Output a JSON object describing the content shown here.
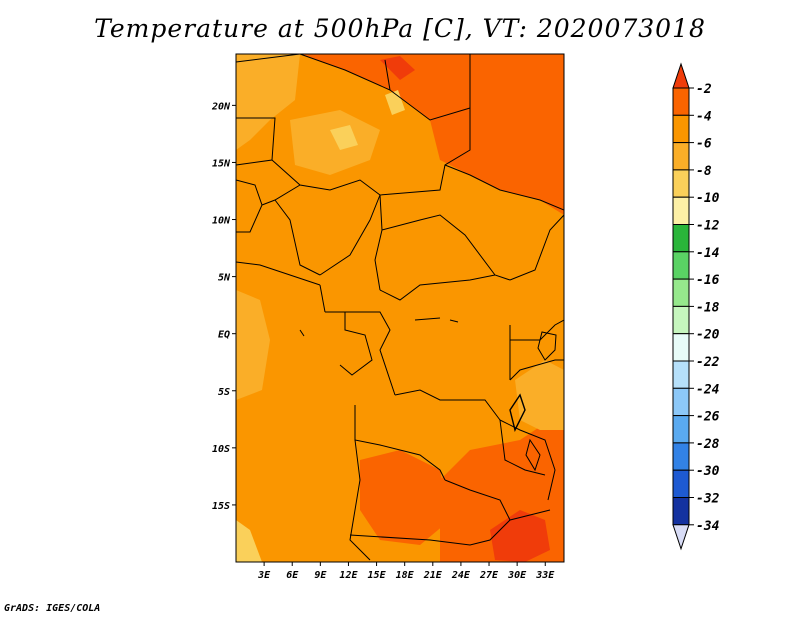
{
  "title": "Temperature at 500hPa [C], VT: 2020073018",
  "credit": "GrADS: IGES/COLA",
  "map": {
    "lat_labels": [
      {
        "label": "20N",
        "lat": 20
      },
      {
        "label": "15N",
        "lat": 15
      },
      {
        "label": "10N",
        "lat": 10
      },
      {
        "label": "5N",
        "lat": 5
      },
      {
        "label": "EQ",
        "lat": 0
      },
      {
        "label": "5S",
        "lat": -5
      },
      {
        "label": "10S",
        "lat": -10
      },
      {
        "label": "15S",
        "lat": -15
      }
    ],
    "lon_labels": [
      {
        "label": "3E",
        "lon": 3
      },
      {
        "label": "6E",
        "lon": 6
      },
      {
        "label": "9E",
        "lon": 9
      },
      {
        "label": "12E",
        "lon": 12
      },
      {
        "label": "15E",
        "lon": 15
      },
      {
        "label": "18E",
        "lon": 18
      },
      {
        "label": "21E",
        "lon": 21
      },
      {
        "label": "24E",
        "lon": 24
      },
      {
        "label": "27E",
        "lon": 27
      },
      {
        "label": "30E",
        "lon": 30
      },
      {
        "label": "33E",
        "lon": 33
      }
    ],
    "lon_range": [
      0,
      35
    ],
    "lat_range": [
      -20,
      24.5
    ]
  },
  "colorbar": {
    "labels": [
      "-2",
      "-4",
      "-6",
      "-8",
      "-10",
      "-12",
      "-14",
      "-16",
      "-18",
      "-20",
      "-22",
      "-24",
      "-26",
      "-28",
      "-30",
      "-32",
      "-34"
    ],
    "colors": [
      "#f03c0a",
      "#fa6400",
      "#fa9600",
      "#faae28",
      "#fad05a",
      "#fdf0a6",
      "#2ab53a",
      "#5ad264",
      "#96e88c",
      "#c6f6be",
      "#e8fcf8",
      "#b6e0fa",
      "#8cc8f8",
      "#5aaaf0",
      "#3282e6",
      "#1e5ad2",
      "#1432a0",
      "#0a0a78",
      "#d8dcf6"
    ]
  }
}
